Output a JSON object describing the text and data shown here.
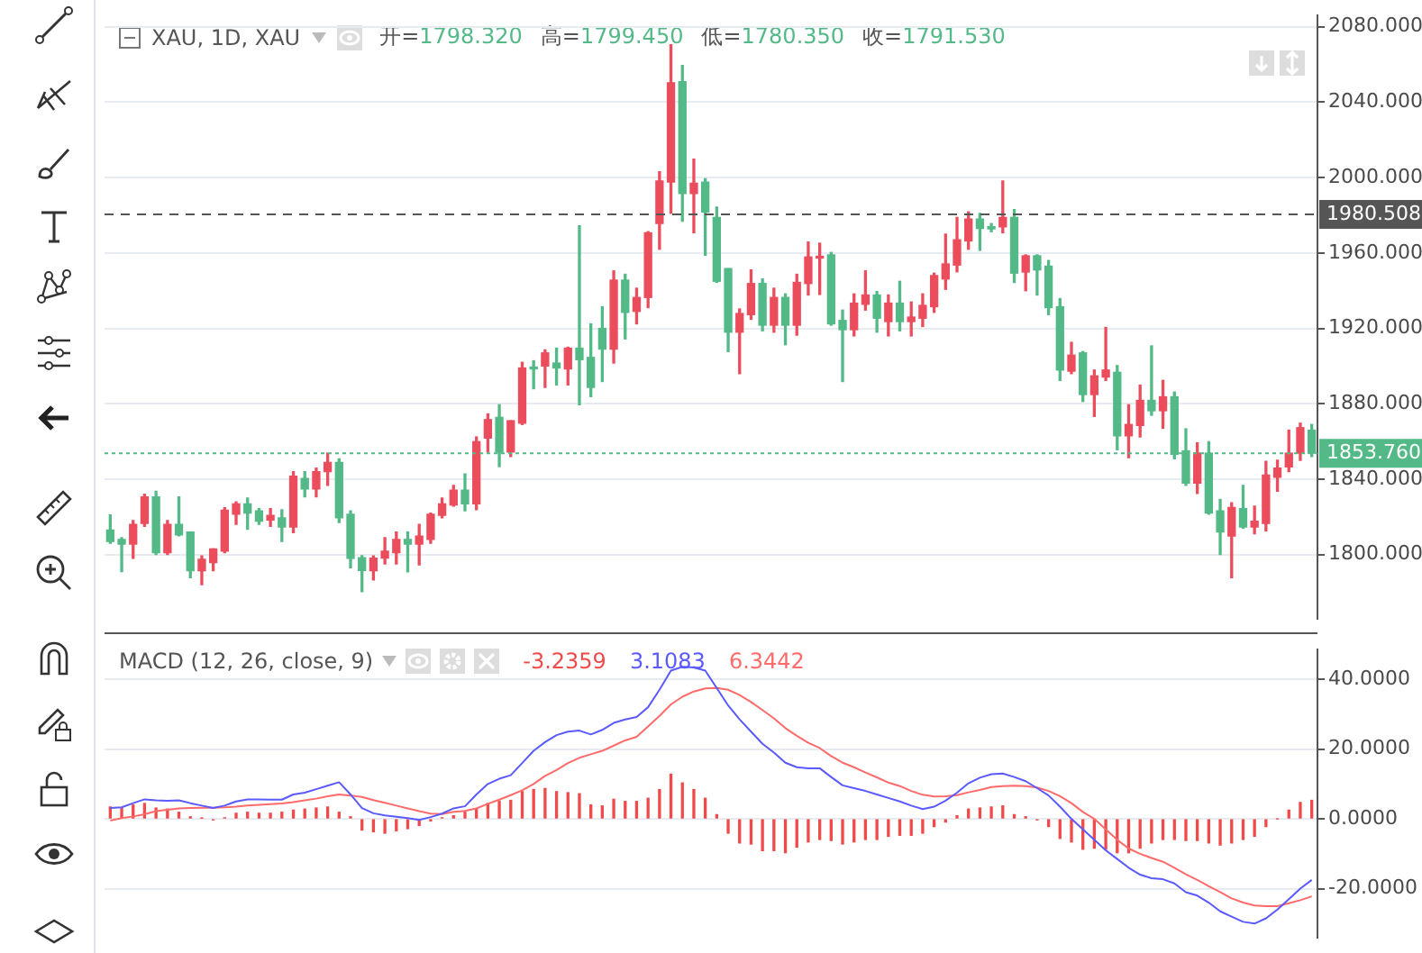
{
  "chart_data": [
    {
      "type": "candlestick",
      "title": "XAU, 1D, XAU",
      "annotations": [
        "开=1798.320",
        "高=1799.450",
        "低=1780.350",
        "收=1791.530"
      ],
      "categories": [
        null,
        null,
        null,
        null,
        null,
        null,
        null,
        null,
        null,
        null,
        null,
        null,
        null,
        null,
        null,
        null,
        null,
        null,
        null,
        null,
        null,
        null,
        null,
        null,
        null,
        null,
        null,
        null,
        null,
        null,
        null,
        null,
        null,
        null,
        null,
        null,
        null,
        null,
        null,
        null,
        null,
        null,
        null,
        null,
        null,
        null,
        null,
        null,
        null,
        null,
        null,
        null,
        null,
        null,
        null,
        null,
        null,
        null,
        null,
        null,
        null,
        null,
        null,
        null,
        null,
        null,
        null,
        null,
        null,
        null,
        null,
        null,
        null,
        null,
        null,
        null,
        null,
        null,
        null,
        null,
        null,
        null,
        null,
        null,
        null,
        null,
        null,
        null,
        null,
        null,
        null,
        null,
        null,
        null,
        null,
        null,
        null,
        null,
        null,
        null,
        null,
        null,
        null,
        null,
        null,
        null
      ],
      "ohlc": [
        [
          1813,
          1821,
          1806,
          1807
        ],
        [
          1808,
          1809,
          1791,
          1805.5
        ],
        [
          1805.5,
          1818,
          1798,
          1816
        ],
        [
          1816.5,
          1832,
          1815,
          1830.6
        ],
        [
          1830.6,
          1833.6,
          1800,
          1801
        ],
        [
          1801,
          1818,
          1800,
          1816
        ],
        [
          1816,
          1830.6,
          1810,
          1810.4
        ],
        [
          1812,
          1812,
          1787.7,
          1791.4
        ],
        [
          1791.4,
          1799.3,
          1784,
          1797.5
        ],
        [
          1795.7,
          1803,
          1791.4,
          1803
        ],
        [
          1801.8,
          1824.8,
          1801,
          1823.5
        ],
        [
          1821.4,
          1828,
          1816,
          1826.9
        ],
        [
          1826.9,
          1830,
          1813.4,
          1822
        ],
        [
          1823.2,
          1824.4,
          1816,
          1817.7
        ],
        [
          1818.3,
          1824.4,
          1815,
          1820.8
        ],
        [
          1819.5,
          1823.8,
          1807,
          1814.6
        ],
        [
          1814.6,
          1844,
          1811.6,
          1841.6
        ],
        [
          1840.4,
          1844,
          1830.6,
          1834.8
        ],
        [
          1834.8,
          1845.9,
          1830.6,
          1844
        ],
        [
          1844,
          1853.8,
          1836.7,
          1848.9
        ],
        [
          1848.9,
          1850.8,
          1817,
          1819.5
        ],
        [
          1821.4,
          1823.2,
          1793,
          1798
        ],
        [
          1798.32,
          1799.45,
          1780.35,
          1791.53
        ],
        [
          1791.4,
          1799.3,
          1786.5,
          1798.1
        ],
        [
          1798.1,
          1809,
          1795,
          1801.8
        ],
        [
          1801,
          1812,
          1795,
          1808
        ],
        [
          1808,
          1812,
          1790.8,
          1805.5
        ],
        [
          1805.5,
          1816,
          1794.5,
          1809.8
        ],
        [
          1808,
          1822,
          1806,
          1821.4
        ],
        [
          1820.8,
          1830,
          1819.5,
          1826.9
        ],
        [
          1826.3,
          1836.7,
          1825.7,
          1834.2
        ],
        [
          1834.2,
          1842.8,
          1823.2,
          1826.9
        ],
        [
          1826.9,
          1862.4,
          1823.8,
          1859.9
        ],
        [
          1861.8,
          1874.6,
          1854.4,
          1871.6
        ],
        [
          1872.8,
          1879.5,
          1846.6,
          1854.4
        ],
        [
          1854.4,
          1871,
          1852,
          1871
        ],
        [
          1869.7,
          1902,
          1869,
          1899
        ],
        [
          1899,
          1902.8,
          1888,
          1898.5
        ],
        [
          1900,
          1908.6,
          1888.7,
          1907
        ],
        [
          1901.6,
          1909.5,
          1890,
          1899
        ],
        [
          1898.5,
          1910,
          1890,
          1909.5
        ],
        [
          1909.5,
          1974.4,
          1879.5,
          1903.4
        ],
        [
          1904.6,
          1922.4,
          1883.8,
          1888.7
        ],
        [
          1920,
          1931.5,
          1891.8,
          1909
        ],
        [
          1909,
          1950.5,
          1901.6,
          1945.6
        ],
        [
          1945.6,
          1948.7,
          1914.4,
          1928.5
        ],
        [
          1929,
          1941.3,
          1922.4,
          1936.4
        ],
        [
          1936.4,
          1971.3,
          1931,
          1970.7
        ],
        [
          1975.6,
          2003.1,
          1962,
          1998.2
        ],
        [
          1997.6,
          2070.5,
          1981,
          2050.3
        ],
        [
          2050.9,
          2059.5,
          1976.8,
          1991.5
        ],
        [
          1991.5,
          2009.8,
          1970.7,
          1997
        ],
        [
          1997.6,
          1999.4,
          1958.8,
          1981.8
        ],
        [
          1978.8,
          1984.3,
          1944.4,
          1945
        ],
        [
          1951.7,
          1951.7,
          1907.7,
          1918
        ],
        [
          1918,
          1930.3,
          1896,
          1927.9
        ],
        [
          1927.3,
          1951,
          1924.8,
          1943.8
        ],
        [
          1943.8,
          1946.2,
          1918.7,
          1921.7
        ],
        [
          1921.7,
          1941.3,
          1918,
          1936.4
        ],
        [
          1936.4,
          1938.3,
          1911.3,
          1921.7
        ],
        [
          1921.7,
          1948.7,
          1916.4,
          1944.4
        ],
        [
          1943.8,
          1965.8,
          1937.7,
          1957.9
        ],
        [
          1957.3,
          1965.2,
          1938,
          1957.9
        ],
        [
          1959,
          1960.3,
          1921.7,
          1922.4
        ],
        [
          1924.2,
          1929.7,
          1891.8,
          1919.3
        ],
        [
          1919.3,
          1938.3,
          1916,
          1933.4
        ],
        [
          1932.8,
          1950.5,
          1929.7,
          1937.7
        ],
        [
          1937.7,
          1939.5,
          1918,
          1925.4
        ],
        [
          1923.6,
          1937.7,
          1916,
          1933.4
        ],
        [
          1933.4,
          1945,
          1918.7,
          1923.6
        ],
        [
          1923.6,
          1934,
          1916,
          1926
        ],
        [
          1925.4,
          1938.3,
          1921,
          1932.2
        ],
        [
          1931.5,
          1949.3,
          1928.5,
          1948
        ],
        [
          1946.2,
          1970,
          1940.7,
          1954.2
        ],
        [
          1953.6,
          1978.8,
          1950,
          1967
        ],
        [
          1966.4,
          1981.8,
          1962,
          1978
        ],
        [
          1978,
          1981,
          1961.4,
          1973
        ],
        [
          1974,
          1975.6,
          1971.3,
          1972.8
        ],
        [
          1973.9,
          1998.2,
          1970.7,
          1978.8
        ],
        [
          1978.8,
          1983,
          1944.4,
          1949.3
        ],
        [
          1949.9,
          1959,
          1940,
          1958.5
        ],
        [
          1958.5,
          1959,
          1937.7,
          1951
        ],
        [
          1953,
          1956,
          1927.3,
          1931
        ],
        [
          1931.5,
          1935.8,
          1892.4,
          1897.9
        ],
        [
          1897.3,
          1912.6,
          1896,
          1905.8
        ],
        [
          1907,
          1907.7,
          1881.2,
          1884.9
        ],
        [
          1884.9,
          1897.9,
          1873.3,
          1894.8
        ],
        [
          1894.2,
          1920.5,
          1892.4,
          1897.9
        ],
        [
          1896.7,
          1900.3,
          1855.6,
          1863
        ],
        [
          1863,
          1879.5,
          1851.4,
          1869
        ],
        [
          1868.5,
          1889.9,
          1862.4,
          1881.8
        ],
        [
          1881.8,
          1910.7,
          1873.9,
          1876.3
        ],
        [
          1876.3,
          1892.4,
          1867,
          1883.7
        ],
        [
          1883.7,
          1886.2,
          1850.8,
          1853.2
        ],
        [
          1855,
          1866.7,
          1836.7,
          1837.9
        ],
        [
          1837.9,
          1859.3,
          1832.4,
          1853.8
        ],
        [
          1853.8,
          1859.9,
          1821.4,
          1822
        ],
        [
          1823.2,
          1829.3,
          1800,
          1812
        ],
        [
          1809.8,
          1827.5,
          1787.7,
          1825
        ],
        [
          1824.4,
          1836.7,
          1814,
          1814.6
        ],
        [
          1814.6,
          1825.7,
          1811,
          1817.7
        ],
        [
          1816.5,
          1849.5,
          1812.6,
          1842.2
        ],
        [
          1841,
          1850.1,
          1833.6,
          1845.9
        ],
        [
          1846.5,
          1866,
          1844,
          1853.8
        ],
        [
          1853.8,
          1869.7,
          1850,
          1867.3
        ],
        [
          1866,
          1869,
          1852,
          1853.76
        ]
      ],
      "colors": [
        "#53b987",
        "#53b987",
        "#eb4d5c",
        "#eb4d5c",
        "#53b987",
        "#eb4d5c",
        "#53b987",
        "#53b987",
        "#eb4d5c",
        "#eb4d5c",
        "#eb4d5c",
        "#eb4d5c",
        "#53b987",
        "#53b987",
        "#eb4d5c",
        "#53b987",
        "#eb4d5c",
        "#53b987",
        "#eb4d5c",
        "#eb4d5c",
        "#53b987",
        "#53b987",
        "#53b987",
        "#eb4d5c",
        "#eb4d5c",
        "#eb4d5c",
        "#53b987",
        "#eb4d5c",
        "#eb4d5c",
        "#eb4d5c",
        "#eb4d5c",
        "#53b987",
        "#eb4d5c",
        "#eb4d5c",
        "#53b987",
        "#eb4d5c",
        "#eb4d5c",
        "#53b987",
        "#eb4d5c",
        "#53b987",
        "#eb4d5c",
        "#53b987",
        "#53b987",
        "#53b987",
        "#eb4d5c",
        "#53b987",
        "#eb4d5c",
        "#eb4d5c",
        "#eb4d5c",
        "#eb4d5c",
        "#53b987",
        "#eb4d5c",
        "#53b987",
        "#53b987",
        "#53b987",
        "#eb4d5c",
        "#eb4d5c",
        "#53b987",
        "#eb4d5c",
        "#53b987",
        "#eb4d5c",
        "#eb4d5c",
        "#eb4d5c",
        "#53b987",
        "#53b987",
        "#eb4d5c",
        "#eb4d5c",
        "#53b987",
        "#eb4d5c",
        "#53b987",
        "#eb4d5c",
        "#eb4d5c",
        "#eb4d5c",
        "#eb4d5c",
        "#eb4d5c",
        "#eb4d5c",
        "#53b987",
        "#53b987",
        "#eb4d5c",
        "#53b987",
        "#eb4d5c",
        "#53b987",
        "#53b987",
        "#53b987",
        "#eb4d5c",
        "#53b987",
        "#eb4d5c",
        "#eb4d5c",
        "#53b987",
        "#eb4d5c",
        "#eb4d5c",
        "#53b987",
        "#eb4d5c",
        "#53b987",
        "#53b987",
        "#eb4d5c",
        "#53b987",
        "#53b987",
        "#eb4d5c",
        "#53b987",
        "#eb4d5c",
        "#eb4d5c",
        "#eb4d5c",
        "#eb4d5c",
        "#eb4d5c",
        "#53b987"
      ],
      "ylim": [
        1766,
        2086
      ],
      "yticks": [
        {
          "value": 1800,
          "label": "1800.000"
        },
        {
          "value": 1840,
          "label": "1840.000"
        },
        {
          "value": 1880,
          "label": "1880.000"
        },
        {
          "value": 1920,
          "label": "1920.000"
        },
        {
          "value": 1960,
          "label": "1960.000"
        },
        {
          "value": 2000,
          "label": "2000.000"
        },
        {
          "value": 2040,
          "label": "2040.000"
        },
        {
          "value": 2080,
          "label": "2080.000"
        }
      ],
      "ref_lines": [
        {
          "axis": "y",
          "value": 1980.508,
          "label": "1980.508",
          "color": "#555555",
          "line_style": "dashed"
        },
        {
          "axis": "y",
          "value": 1853.76,
          "label": "1853.760",
          "color": "#53b987",
          "line_style": "dotted"
        }
      ],
      "grid": "y",
      "tick_labels": "y"
    },
    {
      "type": "line",
      "title": "MACD (12, 26, close, 9)",
      "legend": "top left",
      "marker": "none",
      "grid": "y",
      "tick_labels": "y",
      "categories": [
        null,
        null,
        null,
        null,
        null,
        null,
        null,
        null,
        null,
        null,
        null,
        null,
        null,
        null,
        null,
        null,
        null,
        null,
        null,
        null,
        null,
        null,
        null,
        null,
        null,
        null,
        null,
        null,
        null,
        null,
        null,
        null,
        null,
        null,
        null,
        null,
        null,
        null,
        null,
        null,
        null,
        null,
        null,
        null,
        null,
        null,
        null,
        null,
        null,
        null,
        null,
        null,
        null,
        null,
        null,
        null,
        null,
        null,
        null,
        null,
        null,
        null,
        null,
        null,
        null,
        null,
        null,
        null,
        null,
        null,
        null,
        null,
        null,
        null,
        null,
        null,
        null,
        null,
        null,
        null,
        null,
        null,
        null,
        null,
        null,
        null,
        null,
        null,
        null,
        null,
        null,
        null,
        null,
        null,
        null,
        null,
        null,
        null,
        null,
        null,
        null,
        null,
        null,
        null,
        null,
        null
      ],
      "ylim": [
        -34,
        48.5
      ],
      "yticks": [
        {
          "value": -20,
          "label": "-20.0000"
        },
        {
          "value": 0,
          "label": "0.0000"
        },
        {
          "value": 20,
          "label": "20.0000"
        },
        {
          "value": 40,
          "label": "40.0000"
        }
      ],
      "series": [
        {
          "type": "bar",
          "name": "-3.2359",
          "color": "#f04a4a",
          "values": [
            3.4,
            3.1,
            4.0,
            4.4,
            3.1,
            2.8,
            1.9,
            0.6,
            0.2,
            -0.3,
            0.3,
            1.6,
            1.9,
            1.6,
            1.6,
            1.9,
            2.5,
            2.8,
            3.1,
            3.4,
            1.9,
            0.6,
            -3.2,
            -3.7,
            -4.1,
            -3.4,
            -2.8,
            -1.9,
            -0.6,
            0.3,
            0.9,
            1.9,
            2.8,
            4.4,
            5.0,
            5.3,
            7.8,
            8.4,
            8.7,
            7.8,
            7.5,
            7.2,
            4.0,
            3.7,
            5.6,
            5.0,
            5.0,
            5.9,
            8.4,
            12.8,
            10.3,
            8.4,
            5.9,
            1.2,
            -4.1,
            -6.9,
            -7.2,
            -9.1,
            -9.1,
            -9.7,
            -8.1,
            -6.6,
            -5.9,
            -6.2,
            -7.2,
            -6.6,
            -5.9,
            -5.9,
            -5.0,
            -4.7,
            -4.7,
            -4.1,
            -2.2,
            -0.9,
            0.9,
            2.8,
            3.1,
            3.4,
            3.7,
            1.2,
            0.6,
            -0.3,
            -2.2,
            -5.6,
            -6.6,
            -8.7,
            -8.4,
            -8.7,
            -9.7,
            -9.7,
            -8.4,
            -6.9,
            -5.9,
            -5.9,
            -6.2,
            -6.2,
            -6.9,
            -7.5,
            -6.9,
            -5.9,
            -5.0,
            -2.2,
            0,
            2.5,
            4.7,
            5.3
          ]
        },
        {
          "type": "line",
          "name": "3.1083",
          "color": "#5a5aff",
          "values": [
            3.1,
            3.3,
            4.5,
            5.6,
            5.3,
            5.2,
            5.3,
            4.5,
            3.8,
            3.1,
            3.8,
            5.0,
            5.6,
            5.6,
            5.5,
            5.5,
            7.0,
            7.5,
            8.5,
            9.5,
            10.5,
            7.0,
            3.1,
            1.6,
            1.0,
            0.6,
            0.2,
            -0.3,
            0.5,
            1.5,
            3.0,
            3.6,
            7.0,
            10.0,
            11.5,
            12.5,
            16.0,
            19.5,
            22,
            24,
            25,
            25.3,
            24.2,
            25.5,
            27.5,
            28.5,
            29.2,
            32,
            37,
            42.5,
            43.6,
            43.4,
            42.5,
            37.5,
            32.5,
            28.5,
            25.0,
            21.5,
            19.0,
            16.1,
            14.8,
            14.5,
            14.5,
            12.0,
            9.6,
            8.8,
            8.0,
            7.0,
            6.0,
            5.0,
            3.8,
            2.8,
            3.5,
            5.2,
            7.5,
            10.2,
            11.8,
            12.8,
            13.0,
            12.0,
            10.8,
            8.8,
            6.7,
            3.5,
            0.0,
            -3.0,
            -6.0,
            -9.0,
            -11.5,
            -14.0,
            -16.0,
            -17.0,
            -17.3,
            -18.5,
            -21.0,
            -22.0,
            -24.0,
            -26.5,
            -28.0,
            -29.5,
            -30.0,
            -28.5,
            -26.0,
            -23.0,
            -20.0,
            -17.5
          ]
        },
        {
          "type": "line",
          "name": "6.3442",
          "color": "#ff6a6a",
          "values": [
            -0.5,
            0.2,
            0.7,
            1.3,
            2.2,
            2.6,
            3.0,
            3.1,
            3.2,
            3.2,
            3.3,
            3.5,
            3.8,
            4.0,
            4.2,
            4.4,
            4.8,
            5.3,
            5.8,
            6.5,
            7.0,
            6.7,
            6.3,
            5.4,
            4.6,
            3.8,
            3.0,
            2.2,
            1.5,
            1.4,
            2.0,
            2.3,
            3.0,
            4.3,
            5.5,
            6.8,
            8.2,
            10.0,
            12.3,
            14.0,
            16.0,
            17.5,
            18.5,
            19.5,
            21.0,
            22.5,
            23.5,
            26.5,
            29.5,
            32.8,
            35.0,
            36.5,
            37.4,
            37.5,
            37.0,
            35.5,
            33.5,
            31.2,
            28.8,
            26.0,
            23.8,
            21.8,
            20.3,
            18.0,
            16.1,
            14.8,
            13.3,
            11.9,
            10.4,
            9.4,
            8.0,
            6.9,
            6.4,
            6.5,
            6.8,
            7.6,
            8.3,
            9.1,
            9.4,
            9.5,
            9.4,
            9.0,
            8.0,
            6.5,
            4.5,
            2.0,
            0.0,
            -3.0,
            -6.0,
            -8.5,
            -10.0,
            -11.2,
            -12.3,
            -14.0,
            -15.9,
            -17.5,
            -19.3,
            -21.0,
            -22.8,
            -24.0,
            -24.8,
            -25.0,
            -25.0,
            -24.2,
            -23.3,
            -22.2
          ]
        }
      ]
    }
  ]
}
